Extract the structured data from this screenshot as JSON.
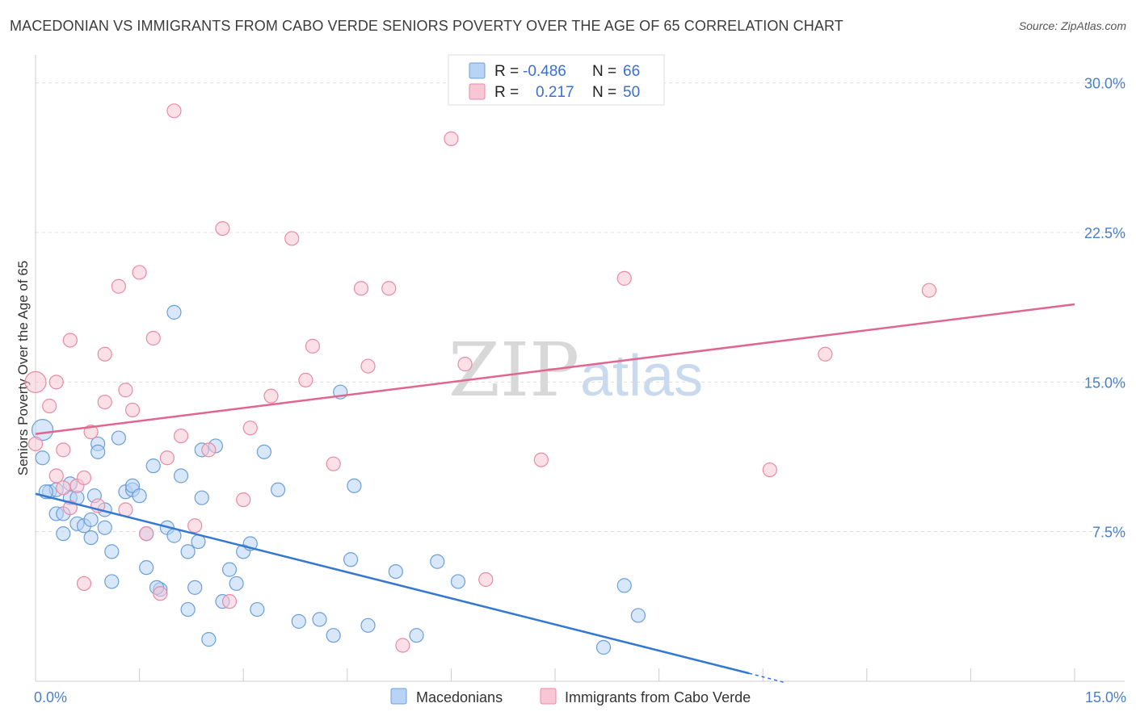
{
  "header": {
    "title": "MACEDONIAN VS IMMIGRANTS FROM CABO VERDE SENIORS POVERTY OVER THE AGE OF 65 CORRELATION CHART",
    "source": "Source: ZipAtlas.com"
  },
  "watermark": {
    "zip": "ZIP",
    "atlas": "atlas"
  },
  "legend": {
    "macedonians": {
      "r_label": "R =",
      "r_value": "-0.486",
      "n_label": "N =",
      "n_value": "66"
    },
    "cabo_verde": {
      "r_label": "R =",
      "r_value": "0.217",
      "n_label": "N =",
      "n_value": "50"
    }
  },
  "colors": {
    "blue_fill": "#b8d3f5",
    "blue_stroke": "#6b9fd8",
    "blue_line": "#3478d0",
    "pink_fill": "#f8c6d4",
    "pink_stroke": "#e88aa6",
    "pink_line": "#e0668e",
    "grid": "#dddddd",
    "axis_text": "#4a7fc8"
  },
  "chart_data": {
    "type": "scatter",
    "title": "MACEDONIAN VS IMMIGRANTS FROM CABO VERDE SENIORS POVERTY OVER THE AGE OF 65 CORRELATION CHART",
    "xlabel": "",
    "ylabel": "Seniors Poverty Over the Age of 65",
    "xlim": [
      0,
      15
    ],
    "ylim": [
      0,
      31
    ],
    "x_tick_labels": [
      "0.0%",
      "15.0%"
    ],
    "y_ticks": [
      7.5,
      15.0,
      22.5,
      30.0
    ],
    "y_tick_labels": [
      "7.5%",
      "15.0%",
      "22.5%",
      "30.0%"
    ],
    "series": [
      {
        "name": "Macedonians",
        "color": "#6b9fd8",
        "trend": {
          "x": [
            0.0,
            10.3
          ],
          "y": [
            9.4,
            0.4
          ]
        },
        "points": [
          [
            0.1,
            12.6
          ],
          [
            0.1,
            11.2
          ],
          [
            0.2,
            9.5
          ],
          [
            0.3,
            9.6
          ],
          [
            0.3,
            8.4
          ],
          [
            0.4,
            7.4
          ],
          [
            0.4,
            8.4
          ],
          [
            0.5,
            9.2
          ],
          [
            0.5,
            9.9
          ],
          [
            0.6,
            9.2
          ],
          [
            0.6,
            7.9
          ],
          [
            0.7,
            7.8
          ],
          [
            0.8,
            8.1
          ],
          [
            0.8,
            7.2
          ],
          [
            0.9,
            11.9
          ],
          [
            0.9,
            11.5
          ],
          [
            1.0,
            8.6
          ],
          [
            1.0,
            7.7
          ],
          [
            1.1,
            6.5
          ],
          [
            1.1,
            5.0
          ],
          [
            1.2,
            12.2
          ],
          [
            1.3,
            9.5
          ],
          [
            1.4,
            9.6
          ],
          [
            1.4,
            9.8
          ],
          [
            1.5,
            9.3
          ],
          [
            1.6,
            7.4
          ],
          [
            1.6,
            5.7
          ],
          [
            1.7,
            10.8
          ],
          [
            1.8,
            4.6
          ],
          [
            1.9,
            7.7
          ],
          [
            2.0,
            7.3
          ],
          [
            2.0,
            18.5
          ],
          [
            2.1,
            10.3
          ],
          [
            2.2,
            6.5
          ],
          [
            2.2,
            3.6
          ],
          [
            2.3,
            4.7
          ],
          [
            2.4,
            11.6
          ],
          [
            2.4,
            9.2
          ],
          [
            2.5,
            2.1
          ],
          [
            2.6,
            11.8
          ],
          [
            2.7,
            4.0
          ],
          [
            2.8,
            5.6
          ],
          [
            2.9,
            4.9
          ],
          [
            3.0,
            6.5
          ],
          [
            3.1,
            6.9
          ],
          [
            3.2,
            3.6
          ],
          [
            3.3,
            11.5
          ],
          [
            3.5,
            9.6
          ],
          [
            3.8,
            3.0
          ],
          [
            4.1,
            3.1
          ],
          [
            4.3,
            2.3
          ],
          [
            4.4,
            14.5
          ],
          [
            4.6,
            9.8
          ],
          [
            4.8,
            2.8
          ],
          [
            5.2,
            5.5
          ],
          [
            5.5,
            2.3
          ],
          [
            5.8,
            6.0
          ],
          [
            6.1,
            5.0
          ],
          [
            8.2,
            1.7
          ],
          [
            8.5,
            4.8
          ],
          [
            8.7,
            3.3
          ],
          [
            0.15,
            9.5
          ],
          [
            1.75,
            4.7
          ],
          [
            4.55,
            6.1
          ],
          [
            2.35,
            7.0
          ],
          [
            0.85,
            9.3
          ]
        ]
      },
      {
        "name": "Immigrants from Cabo Verde",
        "color": "#e88aa6",
        "trend": {
          "x": [
            0.0,
            15.0
          ],
          "y": [
            12.4,
            18.9
          ]
        },
        "points": [
          [
            0.0,
            15.0
          ],
          [
            0.0,
            11.9
          ],
          [
            0.2,
            13.8
          ],
          [
            0.3,
            15.0
          ],
          [
            0.3,
            10.3
          ],
          [
            0.4,
            11.6
          ],
          [
            0.4,
            9.7
          ],
          [
            0.5,
            17.1
          ],
          [
            0.6,
            9.8
          ],
          [
            0.7,
            10.2
          ],
          [
            0.7,
            4.9
          ],
          [
            0.8,
            12.5
          ],
          [
            0.9,
            8.8
          ],
          [
            1.0,
            16.4
          ],
          [
            1.0,
            14.0
          ],
          [
            1.2,
            19.8
          ],
          [
            1.3,
            14.6
          ],
          [
            1.3,
            8.6
          ],
          [
            1.4,
            13.6
          ],
          [
            1.5,
            20.5
          ],
          [
            1.6,
            7.4
          ],
          [
            1.7,
            17.2
          ],
          [
            1.8,
            4.4
          ],
          [
            1.9,
            11.2
          ],
          [
            2.1,
            12.3
          ],
          [
            2.3,
            7.8
          ],
          [
            2.5,
            11.6
          ],
          [
            2.7,
            22.7
          ],
          [
            2.8,
            4.0
          ],
          [
            3.0,
            9.1
          ],
          [
            3.1,
            12.7
          ],
          [
            3.4,
            14.3
          ],
          [
            3.7,
            22.2
          ],
          [
            3.9,
            15.1
          ],
          [
            4.0,
            16.8
          ],
          [
            4.3,
            10.9
          ],
          [
            4.7,
            19.7
          ],
          [
            4.8,
            15.8
          ],
          [
            5.1,
            19.7
          ],
          [
            5.3,
            1.8
          ],
          [
            6.0,
            27.2
          ],
          [
            6.2,
            15.9
          ],
          [
            6.5,
            5.1
          ],
          [
            7.3,
            11.1
          ],
          [
            8.5,
            20.2
          ],
          [
            10.6,
            10.6
          ],
          [
            11.4,
            16.4
          ],
          [
            12.9,
            19.6
          ],
          [
            2.0,
            28.6
          ],
          [
            0.5,
            8.7
          ]
        ]
      }
    ]
  },
  "bottom_legend": {
    "items": [
      "Macedonians",
      "Immigrants from Cabo Verde"
    ]
  }
}
